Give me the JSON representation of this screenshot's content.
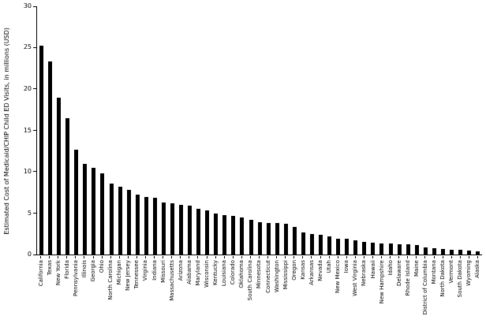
{
  "chart_data": {
    "type": "bar",
    "title": "",
    "xlabel": "",
    "ylabel": "Estimated Cost of Medicaid/CHIP Child ED Visits, in millions (USD)",
    "ylim": [
      0,
      30
    ],
    "yticks": [
      0,
      5,
      10,
      15,
      20,
      25,
      30
    ],
    "bar_color": "#000000",
    "grid": false,
    "legend": "none",
    "categories": [
      "California",
      "Texas",
      "New York",
      "Florida",
      "Pennsylvania",
      "Illinois",
      "Georgia",
      "Ohio",
      "North Carolina",
      "Michigan",
      "New Jersey",
      "Tennessee",
      "Virginia",
      "Indiana",
      "Missouri",
      "Massachusetts",
      "Arizona",
      "Alabama",
      "Maryland",
      "Wisconsin",
      "Kentucky",
      "Louisiana",
      "Colorado",
      "Oklahoma",
      "South Carolina",
      "Minnesota",
      "Connecticut",
      "Washington",
      "Mississippi",
      "Oregon",
      "Kansas",
      "Arkansas",
      "Nevada",
      "Utah",
      "New Mexico",
      "Iowa",
      "West Virginia",
      "Nebraska",
      "Hawaii",
      "New Hampshire",
      "Idaho",
      "Delaware",
      "Rhode Island",
      "Maine",
      "District of Columbia",
      "Montana",
      "North Dakota",
      "Vermont",
      "South Dakota",
      "Wyoming",
      "Alaska"
    ],
    "values": [
      25.2,
      23.3,
      19.0,
      16.5,
      12.7,
      11.0,
      10.5,
      9.8,
      8.6,
      8.2,
      7.8,
      7.2,
      7.0,
      6.9,
      6.3,
      6.2,
      6.0,
      5.9,
      5.5,
      5.3,
      5.0,
      4.8,
      4.7,
      4.5,
      4.2,
      3.9,
      3.8,
      3.8,
      3.7,
      3.3,
      2.7,
      2.5,
      2.4,
      2.2,
      1.9,
      1.9,
      1.7,
      1.5,
      1.4,
      1.3,
      1.3,
      1.2,
      1.2,
      1.1,
      0.9,
      0.8,
      0.7,
      0.6,
      0.6,
      0.5,
      0.4
    ]
  }
}
